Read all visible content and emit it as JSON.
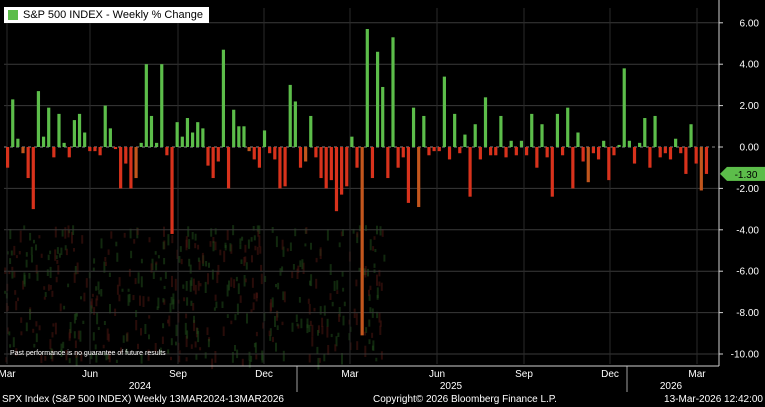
{
  "legend": {
    "label": "S&P 500 INDEX - Weekly % Change",
    "swatch_color": "#5cbd4a"
  },
  "disclaimer": "Past performance is no guarantee of future results",
  "footer": {
    "left": "SPX Index (S&P 500 INDEX) Weekly 13MAR2024-13MAR2026",
    "center": "Copyright© 2026 Bloomberg Finance L.P.",
    "right": "13-Mar-2026 12:42:00"
  },
  "chart_data": {
    "type": "bar",
    "title": "S&P 500 INDEX - Weekly % Change",
    "ylim": [
      -10.5,
      7.0
    ],
    "yticks": [
      "6.00",
      "4.00",
      "2.00",
      "0.00",
      "-2.00",
      "-4.00",
      "-6.00",
      "-8.00",
      "-10.00"
    ],
    "month_labels": [
      "Mar",
      "Jun",
      "Sep",
      "Dec",
      "Mar",
      "Jun",
      "Sep",
      "Dec",
      "Mar"
    ],
    "year_labels": [
      "2024",
      "2025",
      "2026"
    ],
    "last_value_label": "-1.30",
    "positive_color": "#5cbd4a",
    "negative_color": "#d8321c",
    "values": [
      -1.0,
      2.3,
      0.4,
      -0.3,
      -1.5,
      -3.0,
      2.7,
      0.5,
      1.9,
      -0.5,
      1.6,
      0.2,
      -0.5,
      1.3,
      1.6,
      0.7,
      -0.2,
      -0.2,
      -0.4,
      2.0,
      0.9,
      -0.1,
      -2.0,
      -0.8,
      -2.0,
      -1.5,
      0.2,
      4.0,
      1.5,
      0.2,
      4.0,
      -0.4,
      -4.2,
      1.2,
      0.5,
      1.4,
      0.7,
      1.2,
      0.9,
      -0.9,
      -1.5,
      -0.7,
      4.7,
      -2.0,
      1.8,
      1.0,
      1.0,
      -0.2,
      -0.6,
      -1.0,
      0.8,
      -0.3,
      -0.6,
      -2.0,
      -1.9,
      3.0,
      2.2,
      -1.0,
      -0.7,
      1.5,
      -0.5,
      -1.5,
      -2.0,
      -1.6,
      -3.1,
      -2.3,
      -1.9,
      0.5,
      -1.0,
      -9.1,
      5.7,
      -1.5,
      4.6,
      2.9,
      -1.5,
      5.3,
      -1.0,
      -0.5,
      -2.7,
      1.9,
      -2.9,
      1.5,
      -0.4,
      -0.2,
      -0.2,
      3.4,
      -0.6,
      1.6,
      -0.3,
      0.6,
      -2.4,
      1.1,
      -0.6,
      2.4,
      -0.4,
      -0.4,
      1.5,
      -0.5,
      0.3,
      -0.4,
      0.3,
      -0.4,
      1.6,
      -1.0,
      1.1,
      -0.5,
      -2.4,
      1.6,
      -0.4,
      1.9,
      -2.0,
      0.7,
      -0.7,
      -1.7,
      -0.3,
      -0.6,
      0.3,
      -1.6,
      -0.4,
      0.1,
      3.8,
      0.3,
      -0.8,
      0.2,
      1.4,
      -1.0,
      1.5,
      -0.5,
      -0.3,
      -0.6,
      0.4,
      -0.3,
      -1.3,
      1.1,
      -0.8,
      -2.1,
      -1.3
    ]
  }
}
